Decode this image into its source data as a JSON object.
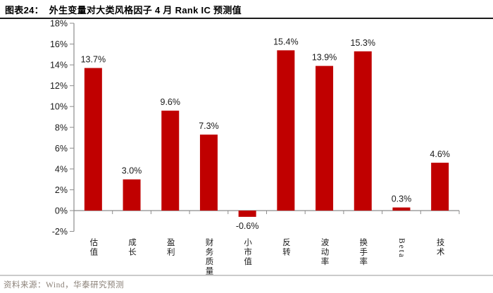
{
  "figure": {
    "title": "图表24：  外生变量对大类风格因子 4 月 Rank IC 预测值",
    "source": "资料来源：Wind，华泰研究预测"
  },
  "chart_data": {
    "type": "bar",
    "title": "外生变量对大类风格因子 4 月 Rank IC 预测值",
    "categories": [
      "估值",
      "成长",
      "盈利",
      "财务质量",
      "小市值",
      "反转",
      "波动率",
      "换手率",
      "Beta",
      "技术"
    ],
    "values": [
      13.7,
      3.0,
      9.6,
      7.3,
      -0.6,
      15.4,
      13.9,
      15.3,
      0.3,
      4.6
    ],
    "value_labels": [
      "13.7%",
      "3.0%",
      "9.6%",
      "7.3%",
      "-0.6%",
      "15.4%",
      "13.9%",
      "15.3%",
      "0.3%",
      "4.6%"
    ],
    "xlabel": "",
    "ylabel": "",
    "ylim": [
      -2,
      18
    ],
    "ytick_step": 2,
    "ytick_labels": [
      "18%",
      "16%",
      "14%",
      "12%",
      "10%",
      "8%",
      "6%",
      "4%",
      "2%",
      "0%",
      "-2%"
    ],
    "grid": false,
    "legend": "none",
    "bar_color": "#C00000"
  },
  "colors": {
    "bar": "#C00000",
    "axis": "#8C8C8C",
    "tick_label": "#1a1a1a",
    "value_label": "#1a1a1a",
    "title_text": "#000000",
    "title_rule": "#1a1a1a",
    "footer_rule": "#cbcbcb",
    "source_text": "#8B8178",
    "background": "#ffffff"
  }
}
